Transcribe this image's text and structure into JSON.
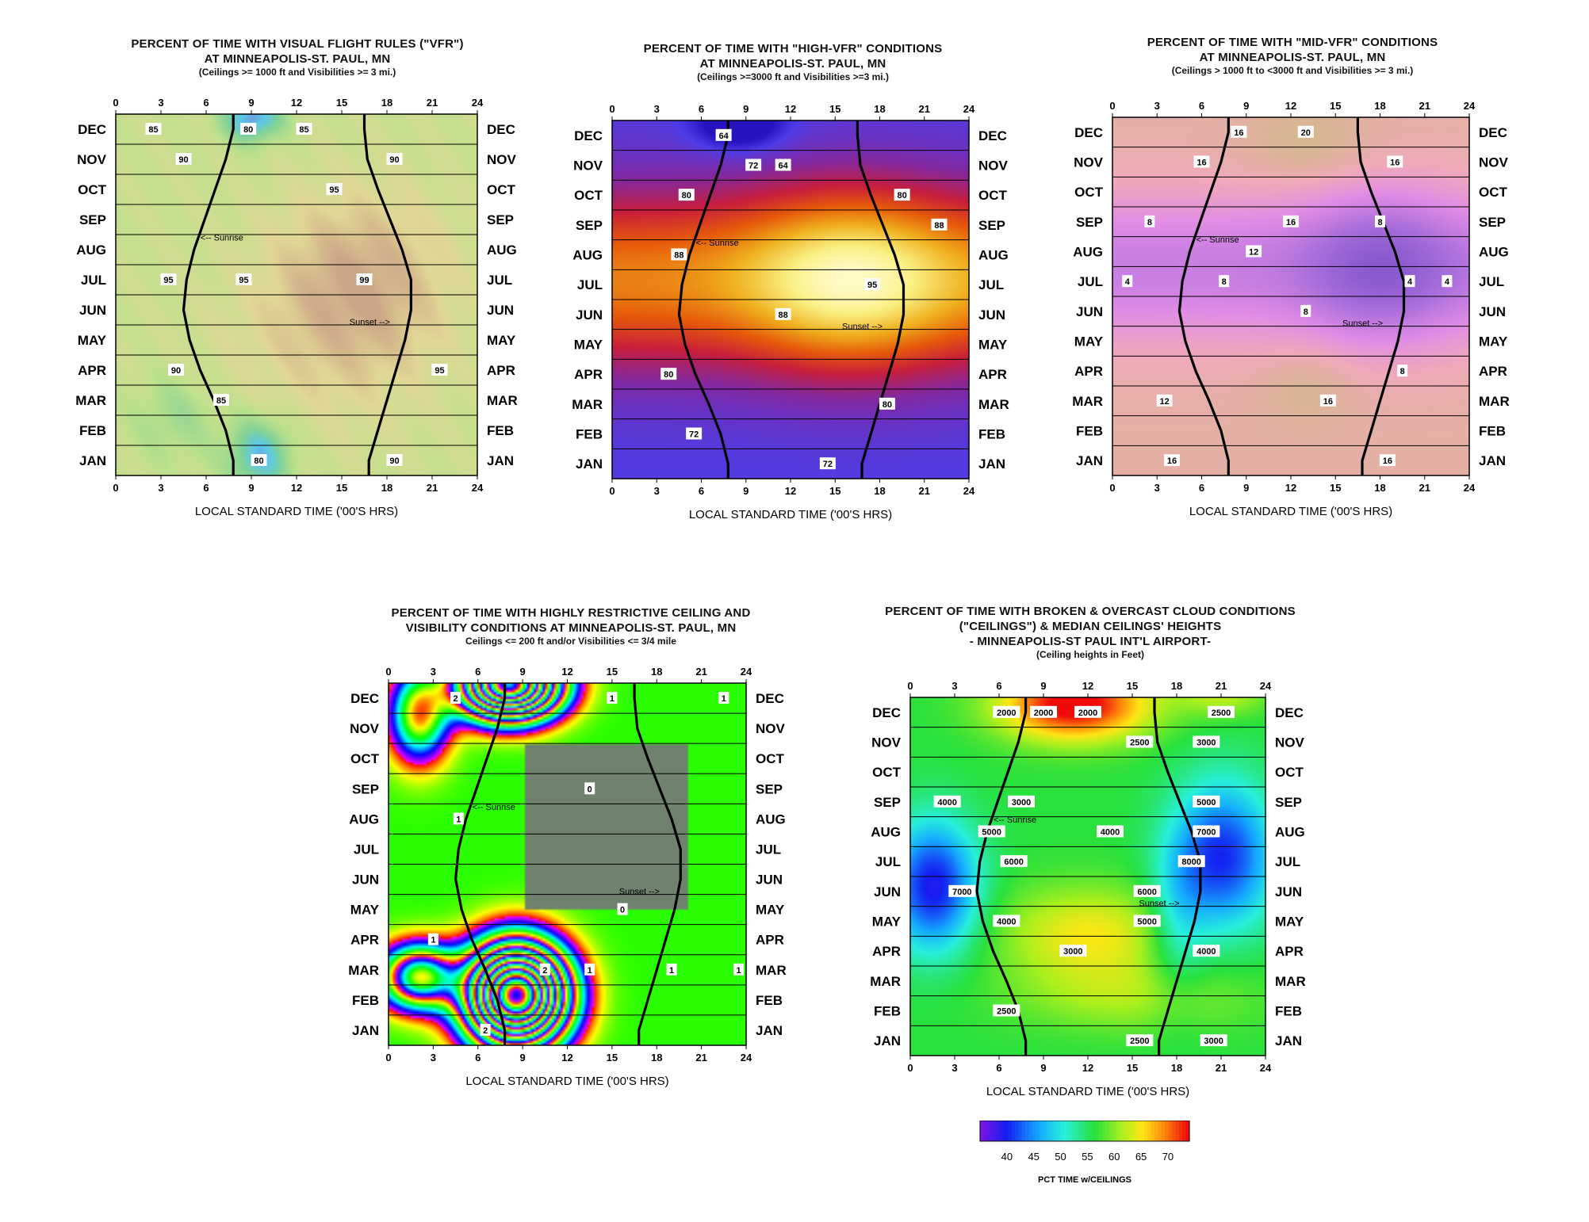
{
  "common": {
    "hours": [
      0,
      3,
      6,
      9,
      12,
      15,
      18,
      21,
      24
    ],
    "months": [
      "JAN",
      "FEB",
      "MAR",
      "APR",
      "MAY",
      "JUN",
      "JUL",
      "AUG",
      "SEP",
      "OCT",
      "NOV",
      "DEC"
    ],
    "xlabel": "LOCAL STANDARD TIME ('00'S HRS)",
    "sunrise_label": "<-- Sunrise",
    "sunset_label": "Sunset -->"
  },
  "chart_data": [
    {
      "type": "heatmap",
      "id": "vfr",
      "title": [
        "PERCENT OF TIME WITH VISUAL FLIGHT RULES (\"VFR\")",
        "AT MINNEAPOLIS-ST. PAUL,  MN"
      ],
      "subtitle": "(Ceilings >= 1000 ft and Visibilities >= 3 mi.)",
      "xlabel": "LOCAL STANDARD TIME ('00'S HRS)",
      "xlim": [
        0,
        24
      ],
      "y_categories": [
        "JAN",
        "FEB",
        "MAR",
        "APR",
        "MAY",
        "JUN",
        "JUL",
        "AUG",
        "SEP",
        "OCT",
        "NOV",
        "DEC"
      ],
      "colormap": "pastel green-yellow-tan with cyan/purple lows",
      "contour_labels": [
        {
          "x": 2.5,
          "y": "DEC",
          "value": "85"
        },
        {
          "x": 8.8,
          "y": "DEC",
          "value": "80"
        },
        {
          "x": 12.5,
          "y": "DEC",
          "value": "85"
        },
        {
          "x": 18.5,
          "y": "NOV",
          "value": "90"
        },
        {
          "x": 4.5,
          "y": "NOV",
          "value": "90"
        },
        {
          "x": 14.5,
          "y": "OCT",
          "value": "95"
        },
        {
          "x": 3.5,
          "y": "JUL",
          "value": "95"
        },
        {
          "x": 8.5,
          "y": "JUL",
          "value": "95"
        },
        {
          "x": 16.5,
          "y": "JUL",
          "value": "99"
        },
        {
          "x": 21.5,
          "y": "APR",
          "value": "95"
        },
        {
          "x": 4,
          "y": "APR",
          "value": "90"
        },
        {
          "x": 7,
          "y": "MAR",
          "value": "85"
        },
        {
          "x": 18.5,
          "y": "JAN",
          "value": "90"
        },
        {
          "x": 9.5,
          "y": "JAN",
          "value": "80"
        }
      ]
    },
    {
      "type": "heatmap",
      "id": "high_vfr",
      "title": [
        "PERCENT OF TIME WITH \"HIGH-VFR\" CONDITIONS",
        "AT  MINNEAPOLIS-ST. PAUL,  MN"
      ],
      "subtitle": "(Ceilings >=3000 ft and Visibilities >=3 mi.)",
      "xlabel": "LOCAL STANDARD TIME ('00'S HRS)",
      "xlim": [
        0,
        24
      ],
      "y_categories": [
        "JAN",
        "FEB",
        "MAR",
        "APR",
        "MAY",
        "JUN",
        "JUL",
        "AUG",
        "SEP",
        "OCT",
        "NOV",
        "DEC"
      ],
      "colormap": "blue-purple-red-orange-yellow",
      "contour_labels": [
        {
          "x": 7.5,
          "y": "DEC",
          "value": "64"
        },
        {
          "x": 11.5,
          "y": "NOV",
          "value": "64"
        },
        {
          "x": 9.5,
          "y": "NOV",
          "value": "72"
        },
        {
          "x": 19.5,
          "y": "OCT",
          "value": "80"
        },
        {
          "x": 5,
          "y": "OCT",
          "value": "80"
        },
        {
          "x": 22,
          "y": "SEP",
          "value": "88"
        },
        {
          "x": 4.5,
          "y": "AUG",
          "value": "88"
        },
        {
          "x": 17.5,
          "y": "JUL",
          "value": "95"
        },
        {
          "x": 11.5,
          "y": "JUN",
          "value": "88"
        },
        {
          "x": 3.8,
          "y": "APR",
          "value": "80"
        },
        {
          "x": 18.5,
          "y": "MAR",
          "value": "80"
        },
        {
          "x": 5.5,
          "y": "FEB",
          "value": "72"
        },
        {
          "x": 14.5,
          "y": "JAN",
          "value": "72"
        }
      ]
    },
    {
      "type": "heatmap",
      "id": "mid_vfr",
      "title": [
        "PERCENT OF TIME WITH \"MID-VFR\" CONDITIONS",
        "AT  MINNEAPOLIS-ST. PAUL,  MN"
      ],
      "subtitle": "(Ceilings > 1000 ft to <3000 ft and  Visibilities >= 3 mi.)",
      "xlabel": "LOCAL STANDARD TIME ('00'S HRS)",
      "xlim": [
        0,
        24
      ],
      "y_categories": [
        "JAN",
        "FEB",
        "MAR",
        "APR",
        "MAY",
        "JUN",
        "JUL",
        "AUG",
        "SEP",
        "OCT",
        "NOV",
        "DEC"
      ],
      "colormap": "purple-pink-tan",
      "contour_labels": [
        {
          "x": 8.5,
          "y": "DEC",
          "value": "16"
        },
        {
          "x": 13,
          "y": "DEC",
          "value": "20"
        },
        {
          "x": 19,
          "y": "NOV",
          "value": "16"
        },
        {
          "x": 6,
          "y": "NOV",
          "value": "16"
        },
        {
          "x": 12,
          "y": "SEP",
          "value": "16"
        },
        {
          "x": 18,
          "y": "SEP",
          "value": "8"
        },
        {
          "x": 2.5,
          "y": "SEP",
          "value": "8"
        },
        {
          "x": 9.5,
          "y": "AUG",
          "value": "12"
        },
        {
          "x": 1,
          "y": "JUL",
          "value": "4"
        },
        {
          "x": 7.5,
          "y": "JUL",
          "value": "8"
        },
        {
          "x": 20,
          "y": "JUL",
          "value": "4"
        },
        {
          "x": 22.5,
          "y": "JUL",
          "value": "4"
        },
        {
          "x": 13,
          "y": "JUN",
          "value": "8"
        },
        {
          "x": 19.5,
          "y": "APR",
          "value": "8"
        },
        {
          "x": 3.5,
          "y": "MAR",
          "value": "12"
        },
        {
          "x": 14.5,
          "y": "MAR",
          "value": "16"
        },
        {
          "x": 4,
          "y": "JAN",
          "value": "16"
        },
        {
          "x": 18.5,
          "y": "JAN",
          "value": "16"
        }
      ]
    },
    {
      "type": "heatmap",
      "id": "restrictive",
      "title": [
        "PERCENT OF TIME WITH HIGHLY RESTRICTIVE CEILING AND",
        "VISIBILITY CONDITIONS  AT  MINNEAPOLIS-ST. PAUL,  MN"
      ],
      "subtitle": "Ceilings <= 200 ft and/or Visibilities <= 3/4 mile",
      "xlabel": "LOCAL STANDARD TIME ('00'S HRS)",
      "xlim": [
        0,
        24
      ],
      "y_categories": [
        "JAN",
        "FEB",
        "MAR",
        "APR",
        "MAY",
        "JUN",
        "JUL",
        "AUG",
        "SEP",
        "OCT",
        "NOV",
        "DEC"
      ],
      "colormap": "rainbow banded (blue low, red high)",
      "contour_labels": [
        {
          "x": 4.5,
          "y": "DEC",
          "value": "2"
        },
        {
          "x": 15,
          "y": "DEC",
          "value": "1"
        },
        {
          "x": 22.5,
          "y": "DEC",
          "value": "1"
        },
        {
          "x": 13.5,
          "y": "SEP",
          "value": "0"
        },
        {
          "x": 4.7,
          "y": "AUG",
          "value": "1"
        },
        {
          "x": 15.7,
          "y": "MAY",
          "value": "0"
        },
        {
          "x": 3,
          "y": "APR",
          "value": "1"
        },
        {
          "x": 10.5,
          "y": "MAR",
          "value": "2"
        },
        {
          "x": 13.5,
          "y": "MAR",
          "value": "1"
        },
        {
          "x": 19,
          "y": "MAR",
          "value": "1"
        },
        {
          "x": 23.5,
          "y": "MAR",
          "value": "1"
        },
        {
          "x": 6.5,
          "y": "JAN",
          "value": "2"
        }
      ]
    },
    {
      "type": "heatmap",
      "id": "ceilings",
      "title": [
        "PERCENT OF TIME WITH BROKEN & OVERCAST CLOUD CONDITIONS",
        "(\"CEILINGS\")  & MEDIAN CEILINGS' HEIGHTS",
        "- MINNEAPOLIS-ST PAUL INT'L AIRPORT-"
      ],
      "subtitle": "(Ceiling heights in Feet)",
      "xlabel": "LOCAL STANDARD TIME ('00'S HRS)",
      "xlim": [
        0,
        24
      ],
      "y_categories": [
        "JAN",
        "FEB",
        "MAR",
        "APR",
        "MAY",
        "JUN",
        "JUL",
        "AUG",
        "SEP",
        "OCT",
        "NOV",
        "DEC"
      ],
      "colormap": "rainbow",
      "colorbar": {
        "ticks": [
          40,
          45,
          50,
          55,
          60,
          65,
          70
        ],
        "label": "PCT TIME w/CEILINGS",
        "range": [
          35,
          74
        ]
      },
      "contour_labels": [
        {
          "x": 9,
          "y": "DEC",
          "value": "2000"
        },
        {
          "x": 12,
          "y": "DEC",
          "value": "2000"
        },
        {
          "x": 6.5,
          "y": "DEC",
          "value": "2000"
        },
        {
          "x": 21,
          "y": "DEC",
          "value": "2500"
        },
        {
          "x": 15.5,
          "y": "NOV",
          "value": "2500"
        },
        {
          "x": 20,
          "y": "NOV",
          "value": "3000"
        },
        {
          "x": 2.5,
          "y": "SEP",
          "value": "4000"
        },
        {
          "x": 7.5,
          "y": "SEP",
          "value": "3000"
        },
        {
          "x": 20,
          "y": "SEP",
          "value": "5000"
        },
        {
          "x": 5.5,
          "y": "AUG",
          "value": "5000"
        },
        {
          "x": 13.5,
          "y": "AUG",
          "value": "4000"
        },
        {
          "x": 20,
          "y": "AUG",
          "value": "7000"
        },
        {
          "x": 7,
          "y": "JUL",
          "value": "6000"
        },
        {
          "x": 19,
          "y": "JUL",
          "value": "8000"
        },
        {
          "x": 3.5,
          "y": "JUN",
          "value": "7000"
        },
        {
          "x": 16,
          "y": "JUN",
          "value": "6000"
        },
        {
          "x": 6.5,
          "y": "MAY",
          "value": "4000"
        },
        {
          "x": 16,
          "y": "MAY",
          "value": "5000"
        },
        {
          "x": 11,
          "y": "APR",
          "value": "3000"
        },
        {
          "x": 20,
          "y": "APR",
          "value": "4000"
        },
        {
          "x": 6.5,
          "y": "FEB",
          "value": "2500"
        },
        {
          "x": 15.5,
          "y": "JAN",
          "value": "2500"
        },
        {
          "x": 20.5,
          "y": "JAN",
          "value": "3000"
        }
      ]
    }
  ]
}
